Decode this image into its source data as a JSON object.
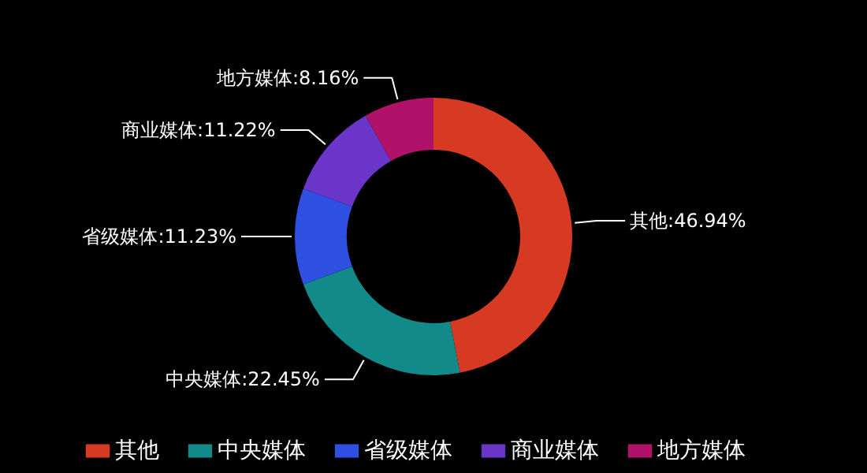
{
  "chart_data": {
    "type": "donut",
    "categories": [
      "其他",
      "中央媒体",
      "省级媒体",
      "商业媒体",
      "地方媒体"
    ],
    "values": [
      46.94,
      22.45,
      11.23,
      11.22,
      8.16
    ],
    "colors": [
      "#d63a22",
      "#138a8a",
      "#2f4fe0",
      "#6a35c8",
      "#b0126a"
    ],
    "value_labels": [
      "其他:46.94%",
      "中央媒体:22.45%",
      "省级媒体:11.23%",
      "商业媒体:11.22%",
      "地方媒体:8.16%"
    ],
    "legend": "bottom"
  }
}
